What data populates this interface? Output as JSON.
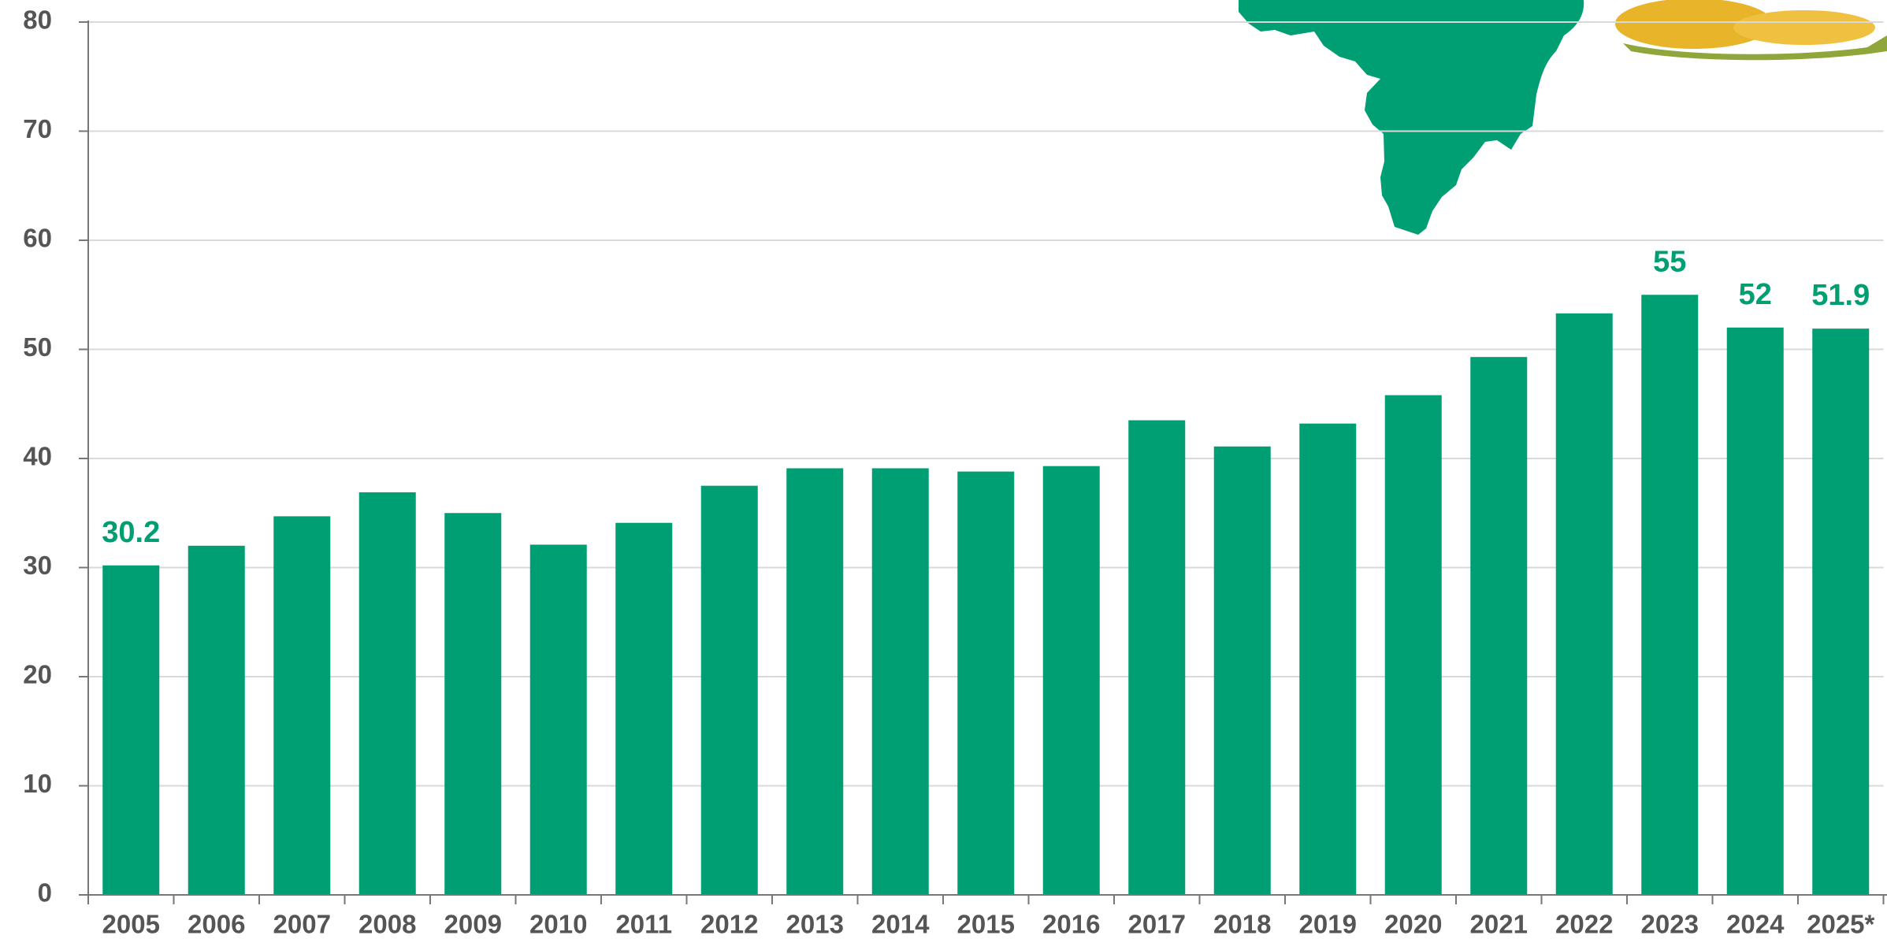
{
  "chart_data": {
    "type": "bar",
    "categories": [
      "2005",
      "2006",
      "2007",
      "2008",
      "2009",
      "2010",
      "2011",
      "2012",
      "2013",
      "2014",
      "2015",
      "2016",
      "2017",
      "2018",
      "2019",
      "2020",
      "2021",
      "2022",
      "2023",
      "2024",
      "2025*"
    ],
    "values": [
      30.2,
      32,
      34.7,
      36.9,
      35,
      32.1,
      34.1,
      37.5,
      39.1,
      39.1,
      38.8,
      39.3,
      43.5,
      41.1,
      43.2,
      45.8,
      49.3,
      53.3,
      55,
      52,
      51.9
    ],
    "value_labels": [
      "30.2",
      null,
      null,
      null,
      null,
      null,
      null,
      null,
      null,
      null,
      null,
      null,
      null,
      null,
      null,
      null,
      null,
      null,
      "55",
      "52",
      "51.9"
    ],
    "color": "#009e73",
    "ylim": [
      0,
      80
    ],
    "yticks": [
      0,
      10,
      20,
      30,
      40,
      50,
      60,
      70,
      80
    ],
    "grid": true
  }
}
